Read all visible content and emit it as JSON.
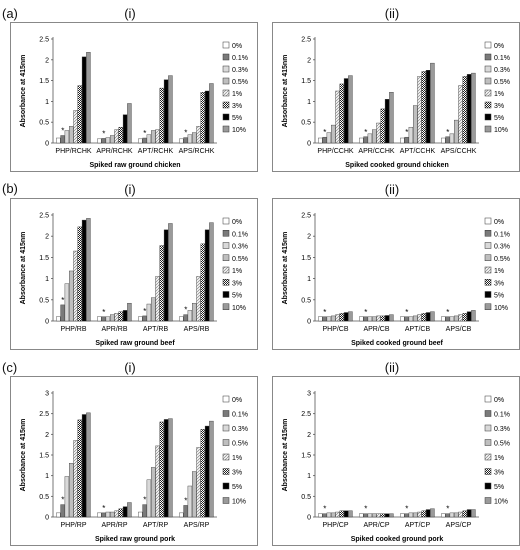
{
  "row_labels": [
    "(a)",
    "(b)",
    "(c)"
  ],
  "column_labels": [
    "(i)",
    "(ii)"
  ],
  "legend": [
    "0%",
    "0.1%",
    "0.3%",
    "0.5%",
    "1%",
    "3%",
    "5%",
    "10%"
  ],
  "chart_data": [
    {
      "type": "bar",
      "panel": "(a)(i)",
      "ylabel": "Absorbance at 415nm",
      "xlabel": "Spiked raw ground chicken",
      "categories": [
        "PHP/RCHK",
        "APR/RCHK",
        "APT/RCHK",
        "APS/RCHK"
      ],
      "ylim": [
        0,
        2.5
      ],
      "yticks": [
        0,
        0.5,
        1,
        1.5,
        2,
        2.5
      ],
      "series_values": [
        [
          0.12,
          0.18,
          0.3,
          0.4,
          0.78,
          1.38,
          2.07,
          2.18
        ],
        [
          0.1,
          0.11,
          0.13,
          0.18,
          0.32,
          0.38,
          0.68,
          0.95
        ],
        [
          0.1,
          0.12,
          0.2,
          0.3,
          0.32,
          1.32,
          1.52,
          1.62
        ],
        [
          0.1,
          0.13,
          0.2,
          0.25,
          0.4,
          1.22,
          1.25,
          1.43
        ]
      ],
      "stars": [
        1,
        1,
        1,
        1
      ]
    },
    {
      "type": "bar",
      "panel": "(a)(ii)",
      "ylabel": "Absorbance at 415nm",
      "xlabel": "Spiked cooked ground chicken",
      "categories": [
        "PHP/CCHK",
        "APR/CCHK",
        "APT/CCHK",
        "APS/CCHK"
      ],
      "ylim": [
        0,
        2.5
      ],
      "yticks": [
        0,
        0.5,
        1,
        1.5,
        2,
        2.5
      ],
      "series_values": [
        [
          0.12,
          0.14,
          0.25,
          0.43,
          1.25,
          1.42,
          1.55,
          1.62
        ],
        [
          0.12,
          0.15,
          0.22,
          0.32,
          0.48,
          0.82,
          1.05,
          1.22
        ],
        [
          0.12,
          0.14,
          0.38,
          0.9,
          1.6,
          1.72,
          1.75,
          1.92
        ],
        [
          0.12,
          0.15,
          0.22,
          0.55,
          1.38,
          1.6,
          1.65,
          1.68
        ]
      ],
      "stars": [
        1,
        1,
        1,
        1
      ]
    },
    {
      "type": "bar",
      "panel": "(b)(i)",
      "ylabel": "Absorbance at 415nm",
      "xlabel": "Spiked raw ground beef",
      "categories": [
        "PHP/RB",
        "APR/RB",
        "APT/RB",
        "APS/RB"
      ],
      "ylim": [
        0,
        2.5
      ],
      "yticks": [
        0,
        0.5,
        1,
        1.5,
        2,
        2.5
      ],
      "series_values": [
        [
          0.1,
          0.38,
          0.88,
          1.18,
          1.65,
          2.22,
          2.38,
          2.42
        ],
        [
          0.1,
          0.1,
          0.1,
          0.15,
          0.18,
          0.22,
          0.25,
          0.42
        ],
        [
          0.1,
          0.12,
          0.4,
          0.55,
          1.05,
          1.78,
          2.15,
          2.3
        ],
        [
          0.1,
          0.15,
          0.25,
          0.42,
          1.05,
          1.82,
          2.15,
          2.32
        ]
      ],
      "stars": [
        1,
        1,
        1,
        1
      ]
    },
    {
      "type": "bar",
      "panel": "(b)(ii)",
      "ylabel": "Absorbance at 415nm",
      "xlabel": "Spiked cooked ground beef",
      "categories": [
        "PHP/CB",
        "APR/CB",
        "APT/CB",
        "APS/CB"
      ],
      "ylim": [
        0,
        2.5
      ],
      "yticks": [
        0,
        0.5,
        1,
        1.5,
        2,
        2.5
      ],
      "series_values": [
        [
          0.1,
          0.1,
          0.1,
          0.12,
          0.15,
          0.18,
          0.2,
          0.22
        ],
        [
          0.1,
          0.1,
          0.1,
          0.1,
          0.12,
          0.12,
          0.13,
          0.15
        ],
        [
          0.1,
          0.1,
          0.1,
          0.12,
          0.15,
          0.18,
          0.2,
          0.22
        ],
        [
          0.1,
          0.1,
          0.1,
          0.12,
          0.15,
          0.18,
          0.22,
          0.25
        ]
      ],
      "stars": [
        1,
        1,
        1,
        1
      ]
    },
    {
      "type": "bar",
      "panel": "(c)(i)",
      "ylabel": "Absorbance at 415nm",
      "xlabel": "Spiked raw ground pork",
      "categories": [
        "PHP/RP",
        "APR/RP",
        "APT/RP",
        "APS/RP"
      ],
      "ylim": [
        0,
        3
      ],
      "yticks": [
        0,
        0.5,
        1,
        1.5,
        2,
        2.5,
        3
      ],
      "series_values": [
        [
          0.1,
          0.3,
          0.98,
          1.3,
          1.85,
          2.35,
          2.48,
          2.52
        ],
        [
          0.1,
          0.1,
          0.12,
          0.12,
          0.15,
          0.2,
          0.25,
          0.35
        ],
        [
          0.12,
          0.3,
          0.9,
          1.2,
          1.72,
          2.3,
          2.36,
          2.38
        ],
        [
          0.1,
          0.28,
          0.75,
          1.1,
          1.68,
          2.12,
          2.2,
          2.32
        ]
      ],
      "stars": [
        1,
        1,
        1,
        1
      ]
    },
    {
      "type": "bar",
      "panel": "(c)(ii)",
      "ylabel": "Absorbance at 415nm",
      "xlabel": "Spiked cooked ground pork",
      "categories": [
        "PHP/CP",
        "APR/CP",
        "APT/CP",
        "APS/CP"
      ],
      "ylim": [
        0,
        3
      ],
      "yticks": [
        0,
        0.5,
        1,
        1.5,
        2,
        2.5,
        3
      ],
      "series_values": [
        [
          0.08,
          0.08,
          0.1,
          0.1,
          0.12,
          0.15,
          0.15,
          0.15
        ],
        [
          0.08,
          0.08,
          0.08,
          0.08,
          0.08,
          0.08,
          0.08,
          0.08
        ],
        [
          0.08,
          0.08,
          0.1,
          0.1,
          0.12,
          0.15,
          0.18,
          0.2
        ],
        [
          0.08,
          0.08,
          0.1,
          0.1,
          0.12,
          0.15,
          0.18,
          0.18
        ]
      ],
      "stars": [
        1,
        1,
        1,
        1
      ]
    }
  ]
}
